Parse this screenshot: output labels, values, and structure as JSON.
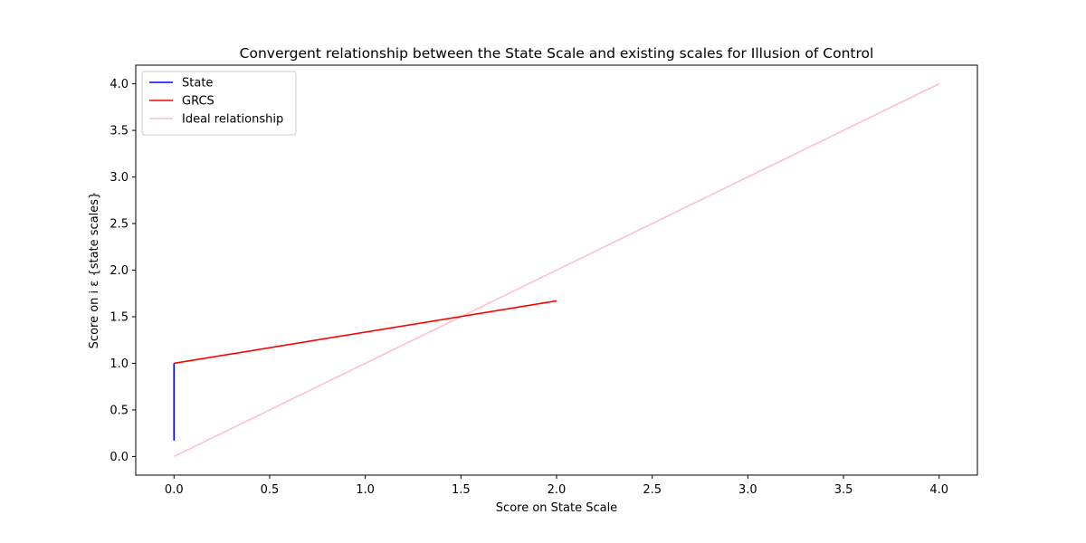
{
  "chart_data": {
    "type": "line",
    "title": "Convergent relationship between the State Scale and existing scales for Illusion of Control",
    "xlabel": "Score on State Scale",
    "ylabel": "Score on i ε {state scales}",
    "xlim": [
      -0.2,
      4.2
    ],
    "ylim": [
      -0.2,
      4.2
    ],
    "xticks": [
      0.0,
      0.5,
      1.0,
      1.5,
      2.0,
      2.5,
      3.0,
      3.5,
      4.0
    ],
    "yticks": [
      0.0,
      0.5,
      1.0,
      1.5,
      2.0,
      2.5,
      3.0,
      3.5,
      4.0
    ],
    "xtick_labels": [
      "0.0",
      "0.5",
      "1.0",
      "1.5",
      "2.0",
      "2.5",
      "3.0",
      "3.5",
      "4.0"
    ],
    "ytick_labels": [
      "0.0",
      "0.5",
      "1.0",
      "1.5",
      "2.0",
      "2.5",
      "3.0",
      "3.5",
      "4.0"
    ],
    "grid": false,
    "legend_position": "top-left",
    "series": [
      {
        "name": "State",
        "color": "#0000ff",
        "x": [
          0.0,
          0.0
        ],
        "y": [
          0.17,
          1.0
        ]
      },
      {
        "name": "GRCS",
        "color": "#ff0000",
        "x": [
          0.0,
          2.0
        ],
        "y": [
          1.0,
          1.67
        ]
      },
      {
        "name": "Ideal relationship",
        "color": "#ffc0cb",
        "x": [
          0.0,
          4.0
        ],
        "y": [
          0.0,
          4.0
        ]
      }
    ]
  }
}
